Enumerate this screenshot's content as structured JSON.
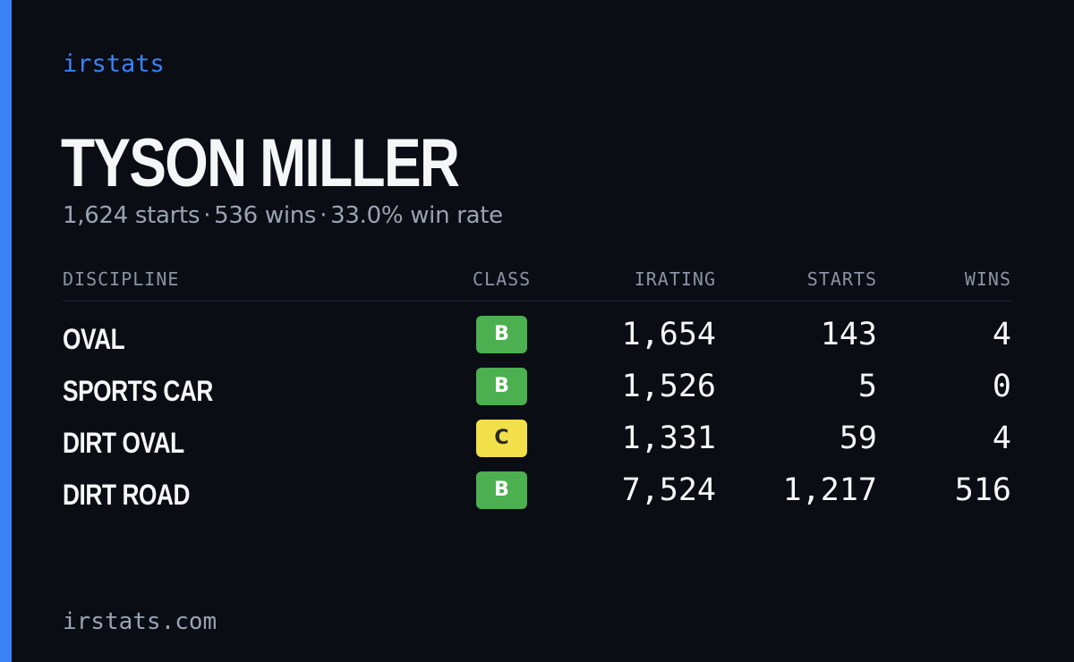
{
  "brand": "irstats",
  "driver": {
    "name": "TYSON MILLER"
  },
  "summary": {
    "starts": "1,624 starts",
    "separator": "·",
    "wins": "536 wins",
    "win_rate": "33.0% win rate"
  },
  "table": {
    "headers": {
      "discipline": "DISCIPLINE",
      "class": "CLASS",
      "irating": "IRATING",
      "starts": "STARTS",
      "wins": "WINS"
    },
    "rows": [
      {
        "discipline": "OVAL",
        "class": "B",
        "irating": "1,654",
        "starts": "143",
        "wins": "4"
      },
      {
        "discipline": "SPORTS CAR",
        "class": "B",
        "irating": "1,526",
        "starts": "5",
        "wins": "0"
      },
      {
        "discipline": "DIRT OVAL",
        "class": "C",
        "irating": "1,331",
        "starts": "59",
        "wins": "4"
      },
      {
        "discipline": "DIRT ROAD",
        "class": "B",
        "irating": "7,524",
        "starts": "1,217",
        "wins": "516"
      }
    ]
  },
  "footer": "irstats.com",
  "colors": {
    "accent": "#3b82f6",
    "background": "#0a0d14",
    "class_b": "#4caf50",
    "class_c": "#f2e04a"
  }
}
